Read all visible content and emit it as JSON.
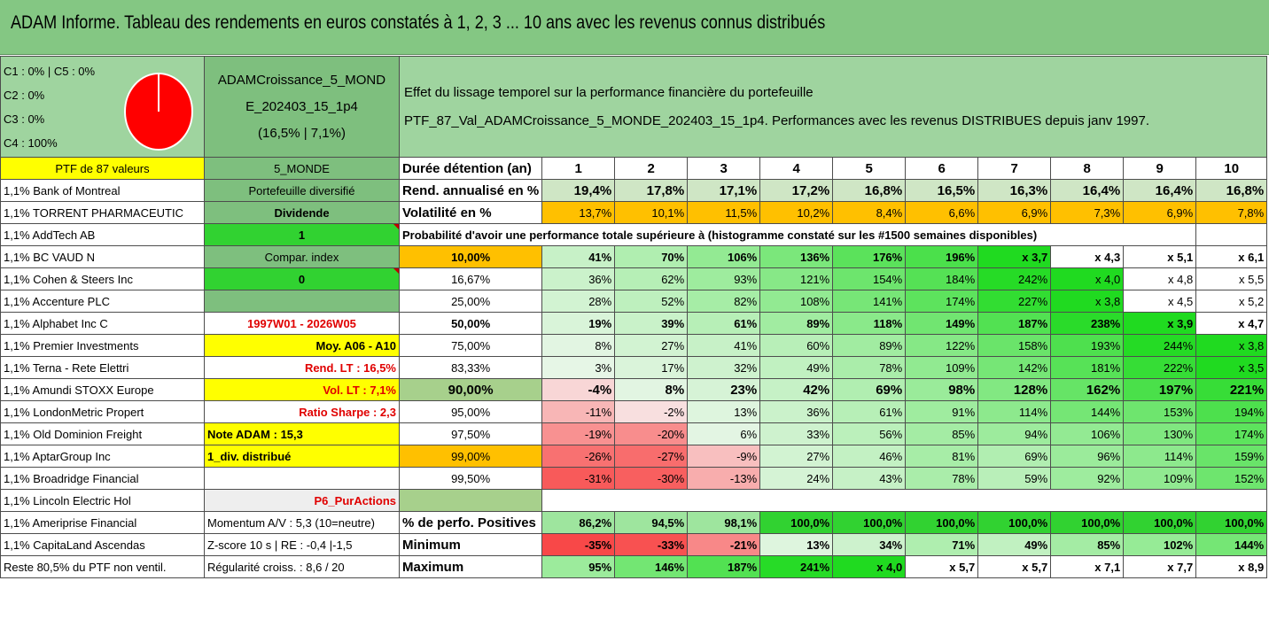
{
  "title": "ADAM Informe. Tableau des rendements en euros constatés à 1, 2, 3 ... 10 ans avec les revenus connus distribués",
  "colors": {
    "title_green": "#84c783",
    "panel_green": "#9fd49f",
    "label_green": "#7ebf7e",
    "bright_green": "#31d231",
    "yellow": "#ffff00",
    "orange": "#ffc000",
    "pie_red": "#ff0000",
    "text_red": "#e00000"
  },
  "header": {
    "classes": [
      "C1 : 0% | C5 : 0%",
      "C2 : 0%",
      "C3 : 0%",
      "C4 : 100%"
    ],
    "pie_icon": "pie-chart-icon",
    "pie_share_pct": 100,
    "portfolio_lines": [
      "ADAMCroissance_5_MOND",
      "E_202403_15_1p4",
      "(16,5% | 7,1%)"
    ],
    "effet_lines": [
      "Effet du lissage temporel sur la performance financière du portefeuille",
      "PTF_87_Val_ADAMCroissance_5_MONDE_202403_15_1p4. Performances avec les revenus DISTRIBUES depuis janv 1997."
    ]
  },
  "ptf_label": "PTF de 87 valeurs",
  "zone_label": "5_MONDE",
  "duree_label": "Durée détention (an)",
  "years": [
    "1",
    "2",
    "3",
    "4",
    "5",
    "6",
    "7",
    "8",
    "9",
    "10"
  ],
  "holdings": [
    "1,1% Bank of Montreal",
    "1,1% TORRENT PHARMACEUTIC",
    "1,1% AddTech AB",
    "1,1% BC VAUD N",
    "1,1% Cohen & Steers Inc",
    "1,1% Accenture PLC",
    "1,1% Alphabet Inc C",
    "1,1% Premier Investments",
    "1,1% Terna - Rete Elettri",
    "1,1% Amundi STOXX Europe",
    "1,1% LondonMetric Propert",
    "1,1% Old Dominion Freight",
    "1,1% AptarGroup Inc",
    "1,1% Broadridge Financial",
    "1,1% Lincoln Electric Hol",
    "1,1% Ameriprise Financial",
    "1,1% CapitaLand Ascendas",
    "Reste 80,5% du PTF non ventil."
  ],
  "info_cells": [
    "Portefeuille diversifié",
    "Dividende",
    "1",
    "Compar. index",
    "0",
    "",
    "1997W01 - 2026W05",
    "Moy. A06 - A10",
    "Rend. LT : 16,5%",
    "Vol. LT : 7,1%",
    "Ratio Sharpe : 2,3",
    "Note ADAM : 15,3",
    "1_div. distribué",
    "",
    "P6_PurActions",
    "Momentum A/V : 5,3 (10=neutre)",
    "Z-score 10 s | RE : -0,4 |-1,5",
    "Régularité croiss. : 8,6 / 20"
  ],
  "rend_label": "Rend. annualisé en %",
  "rend_values": [
    "19,4%",
    "17,8%",
    "17,1%",
    "17,2%",
    "16,8%",
    "16,5%",
    "16,3%",
    "16,4%",
    "16,4%",
    "16,8%"
  ],
  "vol_label": "Volatilité en %",
  "vol_values": [
    "13,7%",
    "10,1%",
    "11,5%",
    "10,2%",
    "8,4%",
    "6,6%",
    "6,9%",
    "7,3%",
    "6,9%",
    "7,8%"
  ],
  "prob_label": "Probabilité d'avoir une performance totale supérieure à (histogramme constaté sur les #1500 semaines disponibles)",
  "prob_rows": [
    {
      "p": "10,00%",
      "v": [
        "41%",
        "70%",
        "106%",
        "136%",
        "176%",
        "196%",
        "x 3,7",
        "x 4,3",
        "x 5,1",
        "x 6,1"
      ]
    },
    {
      "p": "16,67%",
      "v": [
        "36%",
        "62%",
        "93%",
        "121%",
        "154%",
        "184%",
        "242%",
        "x 4,0",
        "x 4,8",
        "x 5,5"
      ]
    },
    {
      "p": "25,00%",
      "v": [
        "28%",
        "52%",
        "82%",
        "108%",
        "141%",
        "174%",
        "227%",
        "x 3,8",
        "x 4,5",
        "x 5,2"
      ]
    },
    {
      "p": "50,00%",
      "v": [
        "19%",
        "39%",
        "61%",
        "89%",
        "118%",
        "149%",
        "187%",
        "238%",
        "x 3,9",
        "x 4,7"
      ]
    },
    {
      "p": "75,00%",
      "v": [
        "8%",
        "27%",
        "41%",
        "60%",
        "89%",
        "122%",
        "158%",
        "193%",
        "244%",
        "x 3,8"
      ]
    },
    {
      "p": "83,33%",
      "v": [
        "3%",
        "17%",
        "32%",
        "49%",
        "78%",
        "109%",
        "142%",
        "181%",
        "222%",
        "x 3,5"
      ]
    },
    {
      "p": "90,00%",
      "v": [
        "-4%",
        "8%",
        "23%",
        "42%",
        "69%",
        "98%",
        "128%",
        "162%",
        "197%",
        "221%"
      ]
    },
    {
      "p": "95,00%",
      "v": [
        "-11%",
        "-2%",
        "13%",
        "36%",
        "61%",
        "91%",
        "114%",
        "144%",
        "153%",
        "194%"
      ]
    },
    {
      "p": "97,50%",
      "v": [
        "-19%",
        "-20%",
        "6%",
        "33%",
        "56%",
        "85%",
        "94%",
        "106%",
        "130%",
        "174%"
      ]
    },
    {
      "p": "99,00%",
      "v": [
        "-26%",
        "-27%",
        "-9%",
        "27%",
        "46%",
        "81%",
        "69%",
        "96%",
        "114%",
        "159%"
      ]
    },
    {
      "p": "99,50%",
      "v": [
        "-31%",
        "-30%",
        "-13%",
        "24%",
        "43%",
        "78%",
        "59%",
        "92%",
        "109%",
        "152%"
      ]
    }
  ],
  "stats": [
    {
      "label": "% de perfo. Positives",
      "v": [
        "86,2%",
        "94,5%",
        "98,1%",
        "100,0%",
        "100,0%",
        "100,0%",
        "100,0%",
        "100,0%",
        "100,0%",
        "100,0%"
      ]
    },
    {
      "label": "Minimum",
      "v": [
        "-35%",
        "-33%",
        "-21%",
        "13%",
        "34%",
        "71%",
        "49%",
        "85%",
        "102%",
        "144%"
      ]
    },
    {
      "label": "Maximum",
      "v": [
        "95%",
        "146%",
        "187%",
        "241%",
        "x 4,0",
        "x 5,7",
        "x 5,7",
        "x 7,1",
        "x 7,7",
        "x 8,9"
      ]
    }
  ]
}
